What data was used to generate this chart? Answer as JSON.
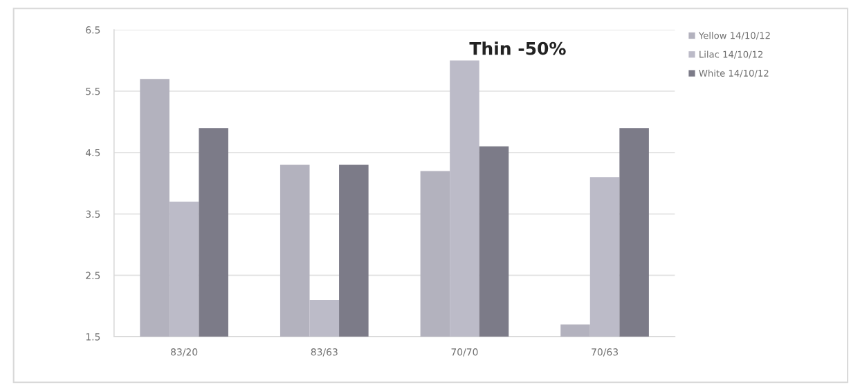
{
  "chart_data": {
    "type": "bar",
    "title": "Thin -50%",
    "categories": [
      "83/20",
      "83/63",
      "70/70",
      "70/63"
    ],
    "series": [
      {
        "name": "Yellow 14/10/12",
        "color": "#b3b2be",
        "values": [
          5.7,
          4.3,
          4.2,
          1.7
        ]
      },
      {
        "name": "Lilac 14/10/12",
        "color": "#bcbbc8",
        "values": [
          3.7,
          2.1,
          6.0,
          4.1
        ]
      },
      {
        "name": "White 14/10/12",
        "color": "#7c7b88",
        "values": [
          4.9,
          4.3,
          4.6,
          4.9
        ]
      }
    ],
    "ylim": [
      1.5,
      6.5
    ],
    "yticks": [
      1.5,
      2.5,
      3.5,
      4.5,
      5.5,
      6.5
    ],
    "grid": "y",
    "legend": "top right"
  }
}
